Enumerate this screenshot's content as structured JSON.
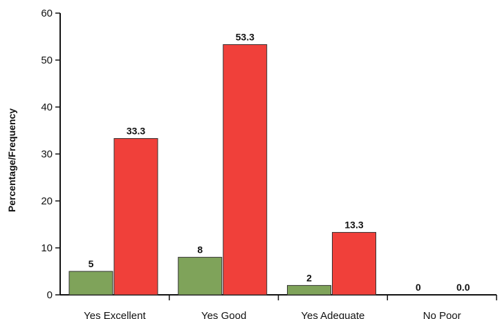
{
  "chart_data": {
    "type": "bar",
    "title": "",
    "xlabel": "",
    "ylabel": "Percentage/Frequency",
    "categories": [
      "Yes Excellent",
      "Yes Good",
      "Yes Adequate",
      "No Poor"
    ],
    "series": [
      {
        "values": [
          5,
          8,
          2,
          0
        ],
        "labels": [
          "5",
          "8",
          "2",
          "0"
        ],
        "color": "#7fa35a"
      },
      {
        "values": [
          33.3,
          53.3,
          13.3,
          0.0
        ],
        "labels": [
          "33.3",
          "53.3",
          "13.3",
          "0.0"
        ],
        "color": "#f0403a"
      }
    ],
    "ylim": [
      0,
      60
    ],
    "yticks": [
      0,
      10,
      20,
      30,
      40,
      50,
      60
    ],
    "grid": false,
    "legend": "none"
  }
}
